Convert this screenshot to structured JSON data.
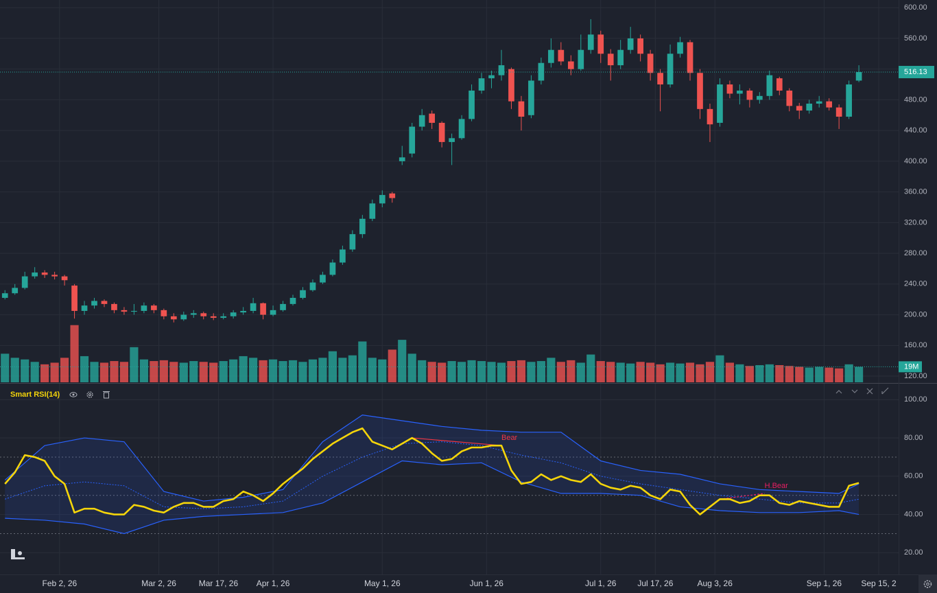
{
  "chart_data": [
    {
      "type": "candlestick",
      "x": [
        0,
        2,
        4,
        6,
        8,
        10,
        12,
        14,
        16,
        18,
        20,
        22,
        24,
        26,
        28,
        30,
        32,
        34,
        36,
        38,
        40,
        42,
        44,
        46,
        48,
        50,
        52,
        54,
        56,
        58,
        60,
        62,
        64,
        66,
        68,
        70,
        72,
        74,
        76,
        78,
        80,
        82,
        84,
        86,
        88,
        90,
        92,
        94,
        96,
        98,
        100,
        102,
        104,
        106,
        108,
        110,
        112,
        114,
        116,
        118,
        120,
        122,
        124,
        126,
        128,
        130,
        132,
        134,
        136,
        138,
        140,
        142,
        144,
        146,
        148,
        150,
        152,
        154,
        156,
        158,
        160,
        162,
        164,
        166,
        168,
        170,
        172
      ],
      "open": [
        222,
        228,
        235,
        250,
        255,
        252,
        250,
        238,
        205,
        212,
        218,
        214,
        206,
        204,
        205,
        212,
        206,
        198,
        194,
        200,
        202,
        198,
        196,
        198,
        203,
        205,
        215,
        200,
        206,
        214,
        222,
        232,
        242,
        252,
        268,
        285,
        305,
        325,
        345,
        358,
        400,
        410,
        445,
        462,
        450,
        425,
        430,
        455,
        492,
        508,
        512,
        520,
        478,
        460,
        505,
        528,
        545,
        530,
        520,
        545,
        565,
        540,
        525,
        545,
        560,
        540,
        515,
        500,
        540,
        555,
        515,
        468,
        450,
        500,
        488,
        492,
        480,
        485,
        508,
        492,
        472,
        466,
        475,
        478,
        470,
        458,
        505
      ],
      "high": [
        232,
        240,
        256,
        262,
        258,
        256,
        252,
        240,
        218,
        222,
        220,
        216,
        210,
        214,
        216,
        214,
        208,
        202,
        204,
        206,
        204,
        202,
        202,
        206,
        210,
        222,
        216,
        212,
        218,
        226,
        236,
        246,
        256,
        272,
        290,
        310,
        330,
        350,
        362,
        360,
        420,
        450,
        468,
        466,
        452,
        436,
        460,
        500,
        515,
        518,
        545,
        522,
        485,
        512,
        535,
        560,
        555,
        538,
        565,
        585,
        570,
        546,
        558,
        575,
        565,
        545,
        520,
        552,
        562,
        558,
        520,
        475,
        508,
        505,
        500,
        495,
        490,
        518,
        510,
        495,
        476,
        480,
        485,
        482,
        474,
        505,
        525
      ],
      "low": [
        220,
        226,
        233,
        247,
        248,
        246,
        238,
        195,
        200,
        208,
        210,
        202,
        200,
        200,
        202,
        202,
        194,
        190,
        192,
        196,
        194,
        193,
        194,
        195,
        200,
        202,
        194,
        198,
        204,
        212,
        220,
        230,
        240,
        250,
        265,
        282,
        300,
        322,
        340,
        346,
        395,
        405,
        440,
        442,
        418,
        395,
        428,
        452,
        488,
        495,
        505,
        468,
        440,
        456,
        500,
        522,
        525,
        512,
        518,
        540,
        528,
        505,
        520,
        540,
        530,
        505,
        465,
        496,
        535,
        505,
        455,
        425,
        445,
        482,
        474,
        470,
        475,
        480,
        486,
        465,
        455,
        462,
        470,
        466,
        442,
        455,
        503
      ],
      "close": [
        228,
        235,
        250,
        255,
        252,
        250,
        245,
        205,
        212,
        218,
        214,
        206,
        204,
        205,
        212,
        206,
        198,
        194,
        200,
        202,
        198,
        196,
        198,
        203,
        205,
        215,
        200,
        206,
        214,
        222,
        232,
        242,
        252,
        268,
        285,
        305,
        325,
        345,
        356,
        352,
        405,
        445,
        460,
        450,
        425,
        430,
        455,
        492,
        508,
        512,
        525,
        478,
        458,
        505,
        528,
        545,
        530,
        520,
        545,
        565,
        540,
        525,
        545,
        560,
        540,
        515,
        500,
        540,
        555,
        515,
        468,
        448,
        500,
        488,
        492,
        480,
        485,
        512,
        492,
        472,
        466,
        475,
        478,
        470,
        458,
        500,
        516.13
      ],
      "up_color": "#26a69a",
      "down_color": "#ef5350",
      "volume": {
        "values": [
          35,
          30,
          28,
          25,
          22,
          24,
          30,
          70,
          32,
          25,
          24,
          26,
          25,
          43,
          28,
          26,
          27,
          25,
          24,
          26,
          25,
          24,
          26,
          28,
          32,
          30,
          27,
          28,
          26,
          27,
          25,
          28,
          30,
          38,
          30,
          33,
          50,
          30,
          28,
          40,
          52,
          35,
          27,
          25,
          24,
          26,
          25,
          27,
          26,
          25,
          24,
          26,
          27,
          25,
          26,
          30,
          25,
          27,
          24,
          34,
          26,
          25,
          24,
          23,
          25,
          24,
          22,
          24,
          23,
          24,
          22,
          25,
          33,
          24,
          22,
          20,
          21,
          22,
          21,
          20,
          19,
          18,
          19,
          18,
          17,
          22,
          19
        ],
        "last_label": "19M"
      },
      "xlim": [
        -1,
        180
      ],
      "xticks": [
        {
          "value": 11,
          "label": "Feb 2, 26"
        },
        {
          "value": 31,
          "label": "Mar 2, 26"
        },
        {
          "value": 43,
          "label": "Mar 17, 26"
        },
        {
          "value": 54,
          "label": "Apr 1, 26"
        },
        {
          "value": 76,
          "label": "May 1, 26"
        },
        {
          "value": 97,
          "label": "Jun 1, 26"
        },
        {
          "value": 120,
          "label": "Jul 1, 26"
        },
        {
          "value": 131,
          "label": "Jul 17, 26"
        },
        {
          "value": 143,
          "label": "Aug 3, 26"
        },
        {
          "value": 165,
          "label": "Sep 1, 26"
        },
        {
          "value": 176,
          "label": "Sep 15, 2"
        }
      ],
      "ylim": [
        112,
        610
      ],
      "yticks": [
        {
          "value": 120,
          "label": "120.00"
        },
        {
          "value": 160,
          "label": "160.00"
        },
        {
          "value": 200,
          "label": "200.00"
        },
        {
          "value": 240,
          "label": "240.00"
        },
        {
          "value": 280,
          "label": "280.00"
        },
        {
          "value": 320,
          "label": "320.00"
        },
        {
          "value": 360,
          "label": "360.00"
        },
        {
          "value": 400,
          "label": "400.00"
        },
        {
          "value": 440,
          "label": "440.00"
        },
        {
          "value": 480,
          "label": "480.00"
        },
        {
          "value": 520,
          "label": "520.00"
        },
        {
          "value": 560,
          "label": "560.00"
        },
        {
          "value": 600,
          "label": "600.00"
        }
      ],
      "grid": true
    },
    {
      "type": "line",
      "title": "Smart RSI(14)",
      "x": [
        0,
        2,
        4,
        6,
        8,
        10,
        12,
        14,
        16,
        18,
        20,
        22,
        24,
        26,
        28,
        30,
        32,
        34,
        36,
        38,
        40,
        42,
        44,
        46,
        48,
        50,
        52,
        54,
        56,
        58,
        60,
        62,
        64,
        66,
        68,
        70,
        72,
        74,
        76,
        78,
        80,
        82,
        84,
        86,
        88,
        90,
        92,
        94,
        96,
        98,
        100,
        102,
        104,
        106,
        108,
        110,
        112,
        114,
        116,
        118,
        120,
        122,
        124,
        126,
        128,
        130,
        132,
        134,
        136,
        138,
        140,
        142,
        144,
        146,
        148,
        150,
        152,
        154,
        156,
        158,
        160,
        162,
        164,
        166,
        168,
        170,
        172
      ],
      "rsi": {
        "color": "#f5d50a",
        "values": [
          56,
          62,
          71,
          70,
          68,
          60,
          56,
          41,
          43,
          43,
          41,
          40,
          40,
          45,
          44,
          42,
          41,
          44,
          46,
          46,
          44,
          44,
          47,
          48,
          52,
          50,
          47,
          51,
          56,
          60,
          64,
          69,
          73,
          77,
          80,
          83,
          85,
          78,
          76,
          74,
          77,
          80,
          77,
          72,
          68,
          69,
          73,
          75,
          75,
          76,
          76,
          63,
          56,
          57,
          61,
          58,
          60,
          58,
          57,
          61,
          56,
          54,
          53,
          55,
          54,
          50,
          48,
          53,
          52,
          45,
          40,
          44,
          48,
          48,
          46,
          47,
          50,
          50,
          46,
          45,
          47,
          46,
          45,
          44,
          44,
          55,
          56.5
        ]
      },
      "bands": {
        "color": "#2962ff",
        "x": [
          0,
          8,
          16,
          24,
          32,
          40,
          48,
          56,
          64,
          72,
          80,
          88,
          96,
          104,
          112,
          120,
          128,
          136,
          144,
          152,
          160,
          168,
          172
        ],
        "upper": [
          58,
          76,
          80,
          78,
          52,
          47,
          49,
          53,
          78,
          92,
          89,
          86,
          84,
          83,
          83,
          68,
          63,
          61,
          56,
          53,
          52,
          51,
          56
        ],
        "lower": [
          38,
          37,
          35,
          30,
          37,
          39,
          40,
          41,
          46,
          57,
          68,
          66,
          67,
          57,
          51,
          51,
          50,
          44,
          42,
          41,
          41,
          42,
          40
        ],
        "basis": [
          48,
          55,
          57,
          55,
          44,
          43,
          44,
          47,
          60,
          70,
          77,
          78,
          76,
          71,
          67,
          60,
          56,
          53,
          50,
          48,
          46,
          46,
          48
        ]
      },
      "levels": [
        70,
        50,
        30
      ],
      "annotations": [
        {
          "label": "Bear",
          "color": "#f23645",
          "x": [
            82,
            100
          ],
          "y": [
            80,
            76
          ]
        },
        {
          "label": "H.Bear",
          "color": "#e91e63",
          "x": [
            144,
            153
          ],
          "y": [
            48,
            51
          ]
        }
      ],
      "ylim": [
        9,
        108
      ],
      "yticks": [
        {
          "value": 20,
          "label": "20.00"
        },
        {
          "value": 40,
          "label": "40.00"
        },
        {
          "value": 60,
          "label": "60.00"
        },
        {
          "value": 80,
          "label": "80.00"
        },
        {
          "value": 100,
          "label": "100.00"
        }
      ]
    }
  ]
}
